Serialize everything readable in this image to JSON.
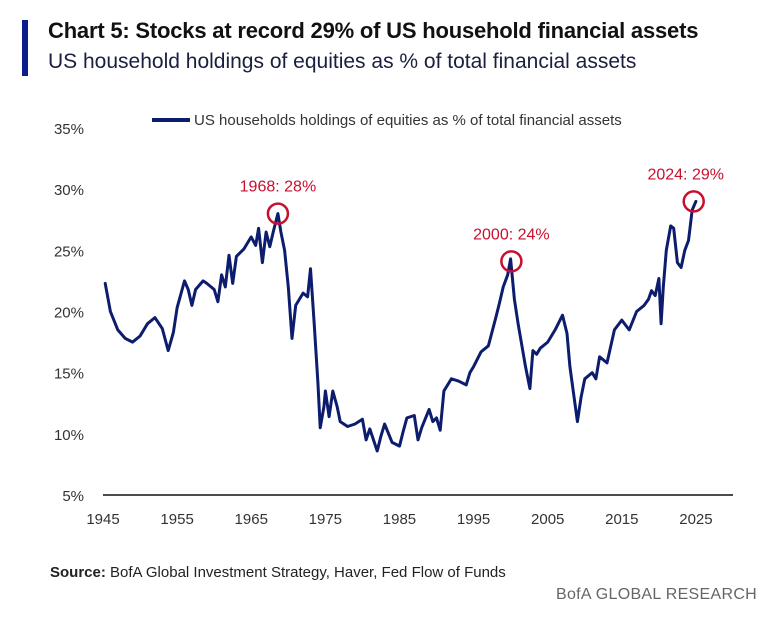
{
  "header": {
    "title": "Chart 5: Stocks at record 29% of US household financial assets",
    "subtitle": "US household holdings of equities as % of total financial assets"
  },
  "footer": {
    "source_label": "Source:",
    "source_text": "BofA Global Investment Strategy, Haver, Fed Flow of Funds",
    "brand": "BofA GLOBAL RESEARCH"
  },
  "colors": {
    "line": "#0c1d6e",
    "annotation": "#c8102e",
    "accent": "#0c1d8c"
  },
  "chart_data": {
    "type": "line",
    "title": "Chart 5: Stocks at record 29% of US household financial assets",
    "subtitle": "US household holdings of equities as % of total financial assets",
    "xlabel": "",
    "ylabel": "",
    "xlim": [
      1945,
      2030
    ],
    "ylim": [
      5,
      35
    ],
    "x_ticks": [
      "1945",
      "1955",
      "1965",
      "1975",
      "1985",
      "1995",
      "2005",
      "2015",
      "2025"
    ],
    "y_ticks": [
      "5%",
      "10%",
      "15%",
      "20%",
      "25%",
      "30%",
      "35%"
    ],
    "grid": false,
    "legend_position": "top",
    "series": [
      {
        "name": "US households holdings of equities as % of total financial assets",
        "x": [
          1945.3,
          1946,
          1947,
          1948,
          1949,
          1950,
          1951,
          1952,
          1953,
          1953.8,
          1954.5,
          1955,
          1956,
          1956.5,
          1957,
          1957.5,
          1958.5,
          1959,
          1960,
          1960.5,
          1961,
          1961.5,
          1962,
          1962.5,
          1963,
          1964,
          1965,
          1965.6,
          1966,
          1966.5,
          1967,
          1967.5,
          1968,
          1968.6,
          1969,
          1969.5,
          1970,
          1970.5,
          1971,
          1972,
          1972.6,
          1973,
          1973.5,
          1974,
          1974.3,
          1974.8,
          1975,
          1975.5,
          1976,
          1976.6,
          1977,
          1978,
          1979,
          1980,
          1980.5,
          1981,
          1982,
          1982.5,
          1983,
          1984,
          1985,
          1985.5,
          1986,
          1987,
          1987.5,
          1988,
          1989,
          1989.5,
          1990,
          1990.5,
          1991,
          1992,
          1993,
          1994,
          1994.5,
          1995,
          1996,
          1997,
          1998,
          1998.5,
          1999,
          1999.6,
          2000,
          2000.5,
          2001,
          2002,
          2002.6,
          2003,
          2003.5,
          2004,
          2005,
          2006,
          2007,
          2007.6,
          2008,
          2008.6,
          2009,
          2009.5,
          2010,
          2011,
          2011.5,
          2012,
          2013,
          2014,
          2015,
          2016,
          2017,
          2018,
          2018.6,
          2019,
          2019.5,
          2020,
          2020.3,
          2020.6,
          2021,
          2021.6,
          2022,
          2022.5,
          2023,
          2023.5,
          2024,
          2024.5,
          2025
        ],
        "y": [
          22.3,
          20,
          18.5,
          17.8,
          17.5,
          18,
          19,
          19.5,
          18.6,
          16.8,
          18.3,
          20.3,
          22.5,
          21.8,
          20.5,
          21.8,
          22.5,
          22.3,
          21.8,
          20.8,
          23,
          22,
          24.6,
          22.3,
          24.5,
          25.1,
          26.1,
          25.4,
          26.8,
          24,
          26.5,
          25.3,
          26.6,
          28,
          26.5,
          25,
          22,
          17.8,
          20.5,
          21.5,
          21.2,
          23.5,
          19,
          14.2,
          10.5,
          12.2,
          13.5,
          11.4,
          13.5,
          12.2,
          11,
          10.6,
          10.8,
          11.2,
          9.5,
          10.4,
          8.6,
          9.8,
          10.8,
          9.3,
          9,
          10.2,
          11.3,
          11.5,
          9.5,
          10.5,
          12,
          11,
          11.3,
          10.3,
          13.5,
          14.5,
          14.3,
          14,
          15,
          15.5,
          16.7,
          17.2,
          19.5,
          20.7,
          22,
          23,
          24.3,
          21,
          19,
          15.5,
          13.7,
          16.8,
          16.5,
          17,
          17.5,
          18.5,
          19.7,
          18.2,
          15.5,
          12.8,
          11,
          13,
          14.5,
          15,
          14.5,
          16.3,
          15.8,
          18.5,
          19.3,
          18.5,
          20,
          20.5,
          21,
          21.7,
          21.3,
          22.7,
          19,
          22,
          25,
          27,
          26.8,
          24,
          23.6,
          25,
          25.8,
          28.3,
          29
        ]
      }
    ],
    "annotations": [
      {
        "label": "1968: 28%",
        "x": 1968.6,
        "y": 28
      },
      {
        "label": "2000: 24%",
        "x": 2000.1,
        "y": 24.1
      },
      {
        "label": "2024: 29%",
        "x": 2024.7,
        "y": 29
      }
    ]
  }
}
